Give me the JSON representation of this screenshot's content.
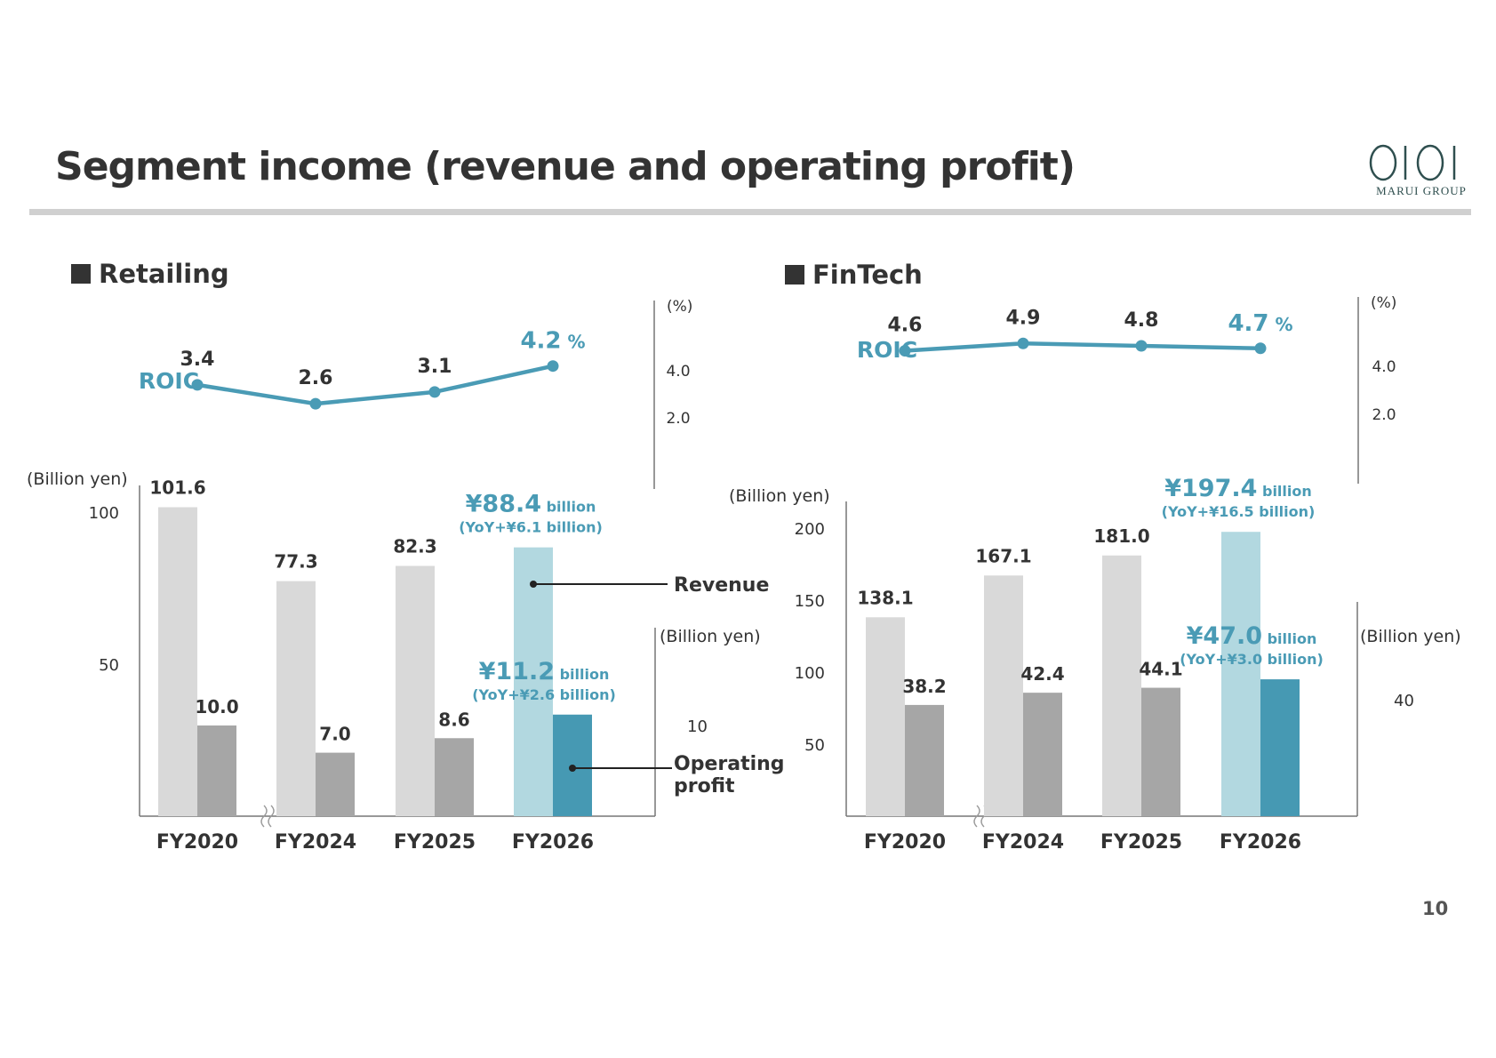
{
  "page": {
    "title": "Segment income (revenue and operating profit)",
    "number": "10",
    "logo_text": "MARUI GROUP"
  },
  "colors": {
    "accent": "#4a9bb5",
    "revenue_past": "#d9d9d9",
    "profit_past": "#a6a6a6",
    "revenue_current": "#b2d8e0",
    "profit_current": "#4699b3",
    "axis": "#777777",
    "text": "#333333"
  },
  "chart_data": [
    {
      "type": "bar",
      "segment": "Retailing",
      "categories": [
        "FY2020",
        "FY2024",
        "FY2025",
        "FY2026"
      ],
      "series": [
        {
          "name": "Revenue",
          "values": [
            101.6,
            77.3,
            82.3,
            88.4
          ],
          "labels": [
            "101.6",
            "77.3",
            "82.3",
            ""
          ]
        },
        {
          "name": "Operating profit",
          "values": [
            10.0,
            7.0,
            8.6,
            11.2
          ],
          "labels": [
            "10.0",
            "7.0",
            "8.6",
            ""
          ]
        }
      ],
      "roic": {
        "label": "ROIC",
        "values": [
          3.4,
          2.6,
          3.1,
          4.2
        ],
        "labels": [
          "3.4",
          "2.6",
          "3.1",
          "4.2"
        ],
        "unit": "%",
        "ylim": [
          0,
          6
        ],
        "ticks": [
          "4.0",
          "2.0"
        ],
        "axis_unit": "(%)"
      },
      "revenue_axis": {
        "unit": "(Billion yen)",
        "ylim": [
          0,
          110
        ],
        "ticks": [
          {
            "value": 100,
            "label": "100"
          },
          {
            "value": 50,
            "label": "50"
          }
        ]
      },
      "profit_axis": {
        "unit": "(Billion yen)",
        "ylim": [
          0,
          34
        ],
        "ticks": [
          {
            "value": 10,
            "label": "10"
          }
        ]
      },
      "highlight": {
        "revenue": {
          "value": "¥88.4",
          "unit": "billion",
          "yoy": "(YoY+¥6.1 billion)"
        },
        "profit": {
          "value": "¥11.2",
          "unit": "billion",
          "yoy": "(YoY+¥2.6 billion)"
        }
      },
      "legend": {
        "revenue": "Revenue",
        "profit_line1": "Operating",
        "profit_line2": "profit"
      }
    },
    {
      "type": "bar",
      "segment": "FinTech",
      "categories": [
        "FY2020",
        "FY2024",
        "FY2025",
        "FY2026"
      ],
      "series": [
        {
          "name": "Revenue",
          "values": [
            138.1,
            167.1,
            181.0,
            197.4
          ],
          "labels": [
            "138.1",
            "167.1",
            "181.0",
            ""
          ]
        },
        {
          "name": "Operating profit",
          "values": [
            38.2,
            42.4,
            44.1,
            47.0
          ],
          "labels": [
            "38.2",
            "42.4",
            "44.1",
            ""
          ]
        }
      ],
      "roic": {
        "label": "ROIC",
        "values": [
          4.6,
          4.9,
          4.8,
          4.7
        ],
        "labels": [
          "4.6",
          "4.9",
          "4.8",
          "4.7"
        ],
        "unit": "%",
        "ylim": [
          0,
          10
        ],
        "ticks": [
          "4.0",
          "2.0"
        ],
        "axis_unit": "(%)"
      },
      "revenue_axis": {
        "unit": "(Billion yen)",
        "ylim": [
          0,
          228
        ],
        "ticks": [
          {
            "value": 200,
            "label": "200"
          },
          {
            "value": 150,
            "label": "150"
          },
          {
            "value": 100,
            "label": "100"
          },
          {
            "value": 50,
            "label": "50"
          }
        ]
      },
      "profit_axis": {
        "unit": "(Billion yen)",
        "ylim": [
          0,
          76
        ],
        "ticks": [
          {
            "value": 40,
            "label": "40"
          }
        ]
      },
      "highlight": {
        "revenue": {
          "value": "¥197.4",
          "unit": "billion",
          "yoy": "(YoY+¥16.5 billion)"
        },
        "profit": {
          "value": "¥47.0",
          "unit": "billion",
          "yoy": "(YoY+¥3.0 billion)"
        }
      }
    }
  ]
}
